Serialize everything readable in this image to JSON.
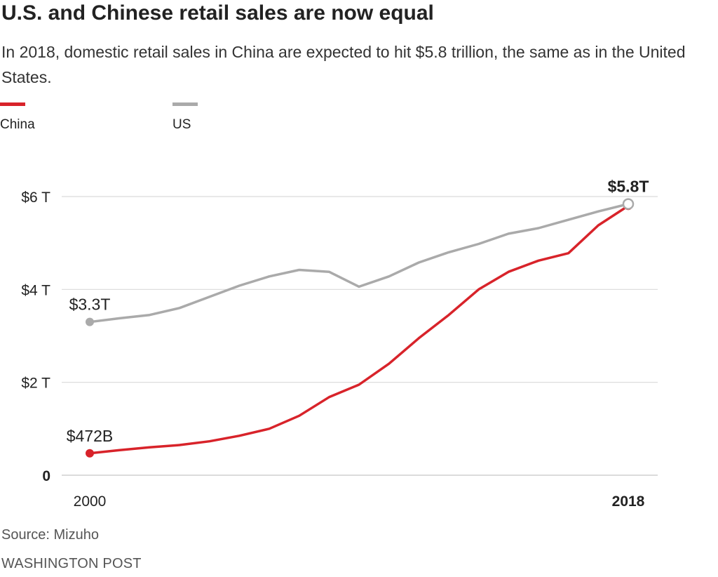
{
  "title": "U.S. and Chinese retail sales are now equal",
  "subtitle": "In 2018, domestic retail sales in China are expected to hit $5.8 trillion, the same as in the United States.",
  "legend": [
    {
      "name": "China",
      "color": "#d8232a"
    },
    {
      "name": "US",
      "color": "#aaaaaa"
    }
  ],
  "source": "Source: Mizuho",
  "credit": "WASHINGTON POST",
  "chart_data": {
    "type": "line",
    "title": "U.S. and Chinese retail sales are now equal",
    "xlabel": "",
    "ylabel": "",
    "x": [
      2000,
      2001,
      2002,
      2003,
      2004,
      2005,
      2006,
      2007,
      2008,
      2009,
      2010,
      2011,
      2012,
      2013,
      2014,
      2015,
      2016,
      2017,
      2018
    ],
    "ylim": [
      0,
      6
    ],
    "xlim": [
      2000,
      2018
    ],
    "grid": true,
    "series": [
      {
        "name": "China",
        "color": "#d8232a",
        "values": [
          0.472,
          0.54,
          0.6,
          0.65,
          0.73,
          0.85,
          1.0,
          1.28,
          1.68,
          1.95,
          2.4,
          2.95,
          3.45,
          4.0,
          4.38,
          4.62,
          4.78,
          5.38,
          5.8
        ]
      },
      {
        "name": "US",
        "color": "#aaaaaa",
        "values": [
          3.3,
          3.38,
          3.45,
          3.6,
          3.84,
          4.08,
          4.28,
          4.42,
          4.38,
          4.06,
          4.28,
          4.58,
          4.8,
          4.98,
          5.2,
          5.32,
          5.5,
          5.68,
          5.84
        ]
      }
    ],
    "yticks": [
      {
        "value": 0,
        "label": "0",
        "bold": true
      },
      {
        "value": 2,
        "label": "$2 T",
        "bold": false
      },
      {
        "value": 4,
        "label": "$4 T",
        "bold": false
      },
      {
        "value": 6,
        "label": "$6 T",
        "bold": false
      }
    ],
    "xticks": [
      {
        "value": 2000,
        "label": "2000",
        "bold": false
      },
      {
        "value": 2018,
        "label": "2018",
        "bold": true
      }
    ],
    "annotations": [
      {
        "text": "$3.3T",
        "series": "US",
        "x": 2000,
        "y": 3.3,
        "bold": false
      },
      {
        "text": "$472B",
        "series": "China",
        "x": 2000,
        "y": 0.472,
        "bold": false
      },
      {
        "text": "$5.8T",
        "series": "US",
        "x": 2018,
        "y": 5.8,
        "bold": true
      }
    ]
  }
}
